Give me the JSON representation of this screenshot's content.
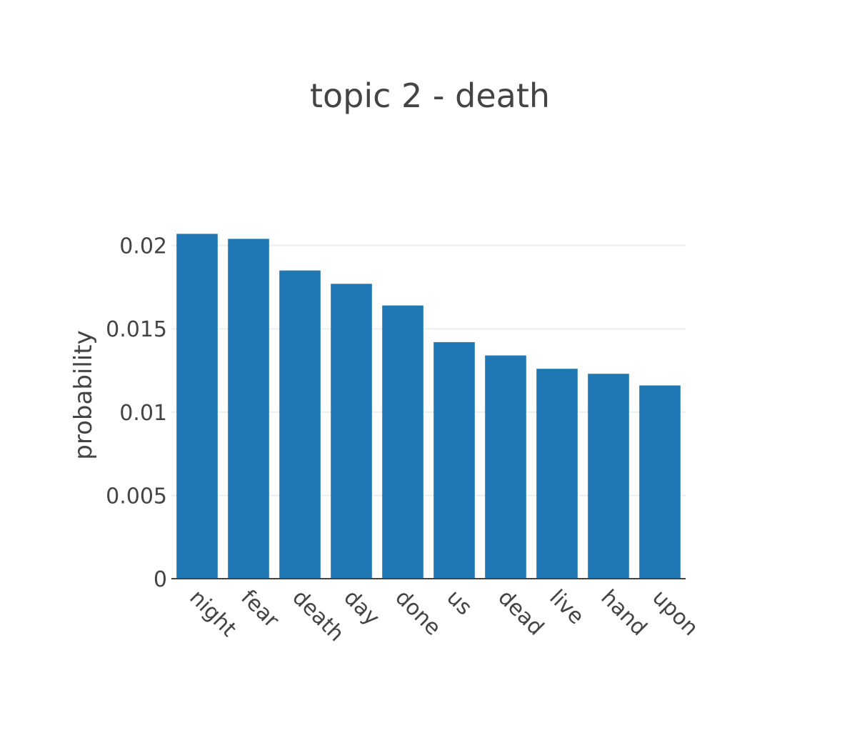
{
  "chart_data": {
    "type": "bar",
    "title": "topic 2 - death",
    "xlabel": "",
    "ylabel": "probability",
    "categories": [
      "night",
      "fear",
      "death",
      "day",
      "done",
      "us",
      "dead",
      "live",
      "hand",
      "upon"
    ],
    "values": [
      0.0207,
      0.0204,
      0.0185,
      0.0177,
      0.0164,
      0.0142,
      0.0134,
      0.0126,
      0.0123,
      0.0116
    ],
    "ylim": [
      0,
      0.0208
    ],
    "yticks": [
      0,
      0.005,
      0.01,
      0.015,
      0.02
    ],
    "ytick_labels": [
      "0",
      "0.005",
      "0.01",
      "0.015",
      "0.02"
    ],
    "grid": true,
    "legend": "none",
    "colors": {
      "bar": "#1f77b4",
      "grid": "#eeeeee",
      "axis_line": "#444444",
      "text": "#444444"
    }
  }
}
